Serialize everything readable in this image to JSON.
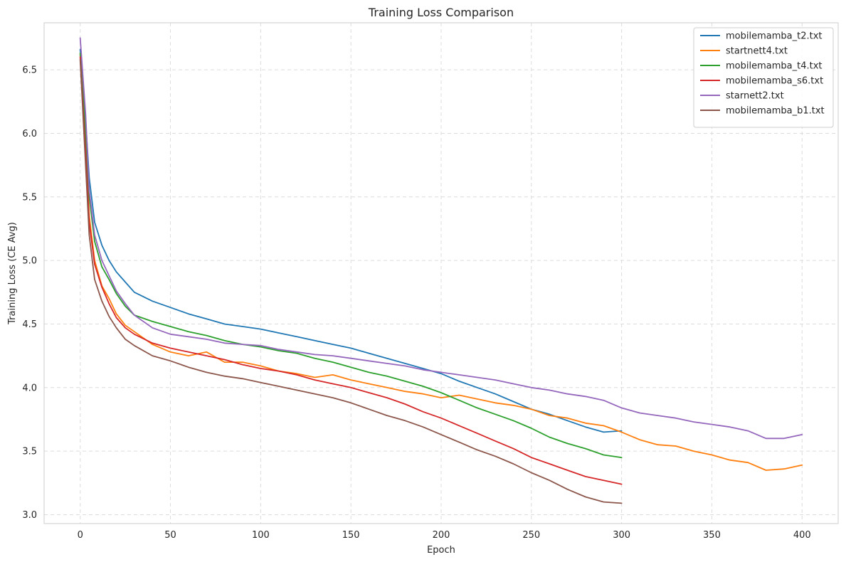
{
  "chart_data": {
    "type": "line",
    "title": "Training Loss Comparison",
    "xlabel": "Epoch",
    "ylabel": "Training Loss (CE Avg)",
    "xlim": [
      -20,
      420
    ],
    "ylim": [
      2.93,
      6.87
    ],
    "xticks": [
      0,
      50,
      100,
      150,
      200,
      250,
      300,
      350,
      400
    ],
    "yticks": [
      3.0,
      3.5,
      4.0,
      4.5,
      5.0,
      5.5,
      6.0,
      6.5
    ],
    "grid": true,
    "legend_position": "top-right",
    "series": [
      {
        "name": "mobilemamba_t2.txt",
        "color": "#1f77b4",
        "x": [
          0,
          3,
          5,
          8,
          12,
          16,
          20,
          25,
          30,
          40,
          50,
          60,
          70,
          80,
          90,
          100,
          110,
          120,
          130,
          140,
          150,
          160,
          170,
          180,
          190,
          200,
          210,
          220,
          230,
          240,
          250,
          260,
          270,
          280,
          290,
          300
        ],
        "y": [
          6.66,
          6.1,
          5.65,
          5.3,
          5.12,
          5.0,
          4.91,
          4.83,
          4.75,
          4.68,
          4.63,
          4.58,
          4.54,
          4.5,
          4.48,
          4.46,
          4.43,
          4.4,
          4.37,
          4.34,
          4.31,
          4.27,
          4.23,
          4.19,
          4.15,
          4.11,
          4.05,
          4.0,
          3.95,
          3.89,
          3.83,
          3.79,
          3.74,
          3.69,
          3.65,
          3.66
        ]
      },
      {
        "name": "startnett4.txt",
        "color": "#ff7f0e",
        "x": [
          0,
          3,
          5,
          8,
          12,
          16,
          20,
          25,
          30,
          40,
          50,
          60,
          70,
          80,
          90,
          100,
          110,
          120,
          130,
          140,
          150,
          160,
          170,
          180,
          190,
          200,
          210,
          220,
          230,
          240,
          250,
          260,
          270,
          280,
          290,
          300,
          310,
          320,
          330,
          340,
          350,
          360,
          370,
          380,
          390,
          400
        ],
        "y": [
          6.62,
          5.9,
          5.35,
          5.0,
          4.8,
          4.7,
          4.58,
          4.49,
          4.44,
          4.34,
          4.28,
          4.25,
          4.28,
          4.2,
          4.2,
          4.17,
          4.13,
          4.11,
          4.08,
          4.1,
          4.06,
          4.03,
          4.0,
          3.97,
          3.95,
          3.92,
          3.94,
          3.91,
          3.88,
          3.86,
          3.83,
          3.78,
          3.76,
          3.72,
          3.7,
          3.65,
          3.59,
          3.55,
          3.54,
          3.5,
          3.47,
          3.43,
          3.41,
          3.35,
          3.36,
          3.39
        ]
      },
      {
        "name": "mobilemamba_t4.txt",
        "color": "#2ca02c",
        "x": [
          0,
          3,
          5,
          8,
          12,
          16,
          20,
          25,
          30,
          40,
          50,
          60,
          70,
          80,
          90,
          100,
          110,
          120,
          130,
          140,
          150,
          160,
          170,
          180,
          190,
          200,
          210,
          220,
          230,
          240,
          250,
          260,
          270,
          280,
          290,
          300
        ],
        "y": [
          6.63,
          6.0,
          5.5,
          5.15,
          4.95,
          4.85,
          4.74,
          4.64,
          4.57,
          4.52,
          4.48,
          4.44,
          4.41,
          4.37,
          4.34,
          4.32,
          4.29,
          4.27,
          4.23,
          4.2,
          4.16,
          4.12,
          4.09,
          4.05,
          4.01,
          3.96,
          3.9,
          3.84,
          3.79,
          3.74,
          3.68,
          3.61,
          3.56,
          3.52,
          3.47,
          3.45
        ]
      },
      {
        "name": "mobilemamba_s6.txt",
        "color": "#d62728",
        "x": [
          0,
          3,
          5,
          8,
          12,
          16,
          20,
          25,
          30,
          40,
          50,
          60,
          70,
          80,
          90,
          100,
          110,
          120,
          130,
          140,
          150,
          160,
          170,
          180,
          190,
          200,
          210,
          220,
          230,
          240,
          250,
          260,
          270,
          280,
          290,
          300
        ],
        "y": [
          6.6,
          5.85,
          5.3,
          4.97,
          4.79,
          4.66,
          4.55,
          4.47,
          4.42,
          4.35,
          4.31,
          4.28,
          4.25,
          4.22,
          4.18,
          4.15,
          4.13,
          4.1,
          4.06,
          4.03,
          4.0,
          3.96,
          3.92,
          3.87,
          3.81,
          3.76,
          3.7,
          3.64,
          3.58,
          3.52,
          3.45,
          3.4,
          3.35,
          3.3,
          3.27,
          3.24
        ]
      },
      {
        "name": "starnett2.txt",
        "color": "#9467bd",
        "x": [
          0,
          3,
          5,
          8,
          12,
          16,
          20,
          25,
          30,
          40,
          50,
          60,
          70,
          80,
          90,
          100,
          110,
          120,
          130,
          140,
          150,
          160,
          170,
          180,
          190,
          200,
          210,
          220,
          230,
          240,
          250,
          260,
          270,
          280,
          290,
          300,
          310,
          320,
          330,
          340,
          350,
          360,
          370,
          380,
          390,
          400
        ],
        "y": [
          6.75,
          6.15,
          5.55,
          5.2,
          5.0,
          4.88,
          4.76,
          4.66,
          4.57,
          4.47,
          4.42,
          4.4,
          4.38,
          4.35,
          4.34,
          4.33,
          4.3,
          4.28,
          4.26,
          4.25,
          4.23,
          4.21,
          4.19,
          4.17,
          4.14,
          4.12,
          4.1,
          4.08,
          4.06,
          4.03,
          4.0,
          3.98,
          3.95,
          3.93,
          3.9,
          3.84,
          3.8,
          3.78,
          3.76,
          3.73,
          3.71,
          3.69,
          3.66,
          3.6,
          3.6,
          3.63
        ]
      },
      {
        "name": "mobilemamba_b1.txt",
        "color": "#8c564b",
        "x": [
          0,
          3,
          5,
          8,
          12,
          16,
          20,
          25,
          30,
          40,
          50,
          60,
          70,
          80,
          90,
          100,
          110,
          120,
          130,
          140,
          150,
          160,
          170,
          180,
          190,
          200,
          210,
          220,
          230,
          240,
          250,
          260,
          270,
          280,
          290,
          300
        ],
        "y": [
          6.58,
          5.75,
          5.2,
          4.85,
          4.68,
          4.56,
          4.47,
          4.38,
          4.33,
          4.25,
          4.21,
          4.16,
          4.12,
          4.09,
          4.07,
          4.04,
          4.01,
          3.98,
          3.95,
          3.92,
          3.88,
          3.83,
          3.78,
          3.74,
          3.69,
          3.63,
          3.57,
          3.51,
          3.46,
          3.4,
          3.33,
          3.27,
          3.2,
          3.14,
          3.1,
          3.09
        ]
      }
    ]
  }
}
